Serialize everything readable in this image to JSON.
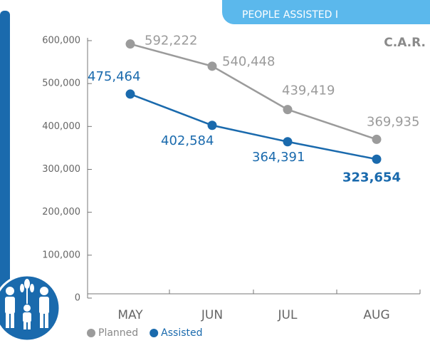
{
  "chart_data": {
    "type": "line",
    "banner": "PEOPLE ASSISTED I",
    "title": "C.A.R.",
    "categories": [
      "MAY",
      "JUN",
      "JUL",
      "AUG"
    ],
    "series": [
      {
        "name": "Planned",
        "color": "#9b9b9b",
        "values": [
          592222,
          540448,
          439419,
          369935
        ],
        "value_labels": [
          "592,222",
          "540,448",
          "439,419",
          "369,935"
        ]
      },
      {
        "name": "Assisted",
        "color": "#1a6aad",
        "values": [
          475464,
          402584,
          364391,
          323654
        ],
        "value_labels": [
          "475,464",
          "402,584",
          "364,391",
          "323,654"
        ]
      }
    ],
    "ylim": [
      0,
      600000
    ],
    "yticks": [
      0,
      {
        "value": 100000,
        "label": "100,000"
      },
      {
        "value": 200000,
        "label": "200,000"
      },
      {
        "value": 300000,
        "label": "300,000"
      },
      {
        "value": 400000,
        "label": "400,000"
      },
      {
        "value": 500000,
        "label": "500,000"
      },
      {
        "value": 600000,
        "label": "600,000"
      }
    ],
    "legend": "bottom-left"
  }
}
